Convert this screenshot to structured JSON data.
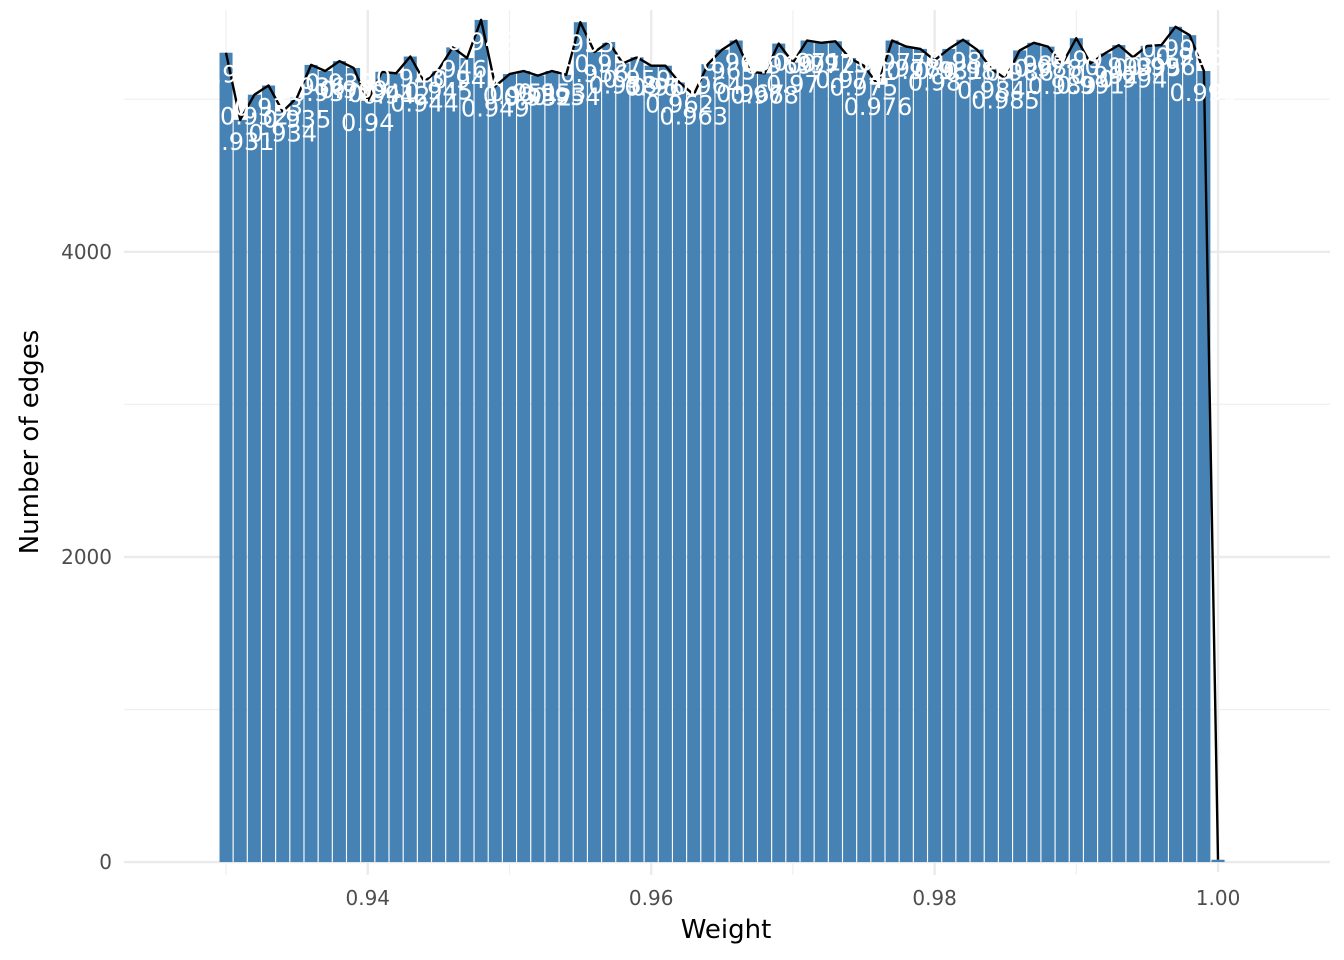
{
  "chart_data": {
    "type": "bar",
    "title": "",
    "xlabel": "Weight",
    "ylabel": "Number of edges",
    "xlim": [
      0.9228,
      1.0079
    ],
    "ylim": [
      -85,
      5585
    ],
    "x_ticks": [
      {
        "value": 0.94,
        "label": "0.94"
      },
      {
        "value": 0.96,
        "label": "0.96"
      },
      {
        "value": 0.98,
        "label": "0.98"
      },
      {
        "value": 1.0,
        "label": "1.00"
      }
    ],
    "y_ticks": [
      {
        "value": 0,
        "label": "0"
      },
      {
        "value": 2000,
        "label": "2000"
      },
      {
        "value": 4000,
        "label": "4000"
      }
    ],
    "grid": true,
    "legend": "none",
    "bar_color": "#4682b4",
    "line_color": "#000000",
    "bar_width": 0.00092,
    "x": [
      0.93,
      0.931,
      0.932,
      0.933,
      0.934,
      0.935,
      0.936,
      0.937,
      0.938,
      0.939,
      0.94,
      0.941,
      0.942,
      0.943,
      0.944,
      0.945,
      0.946,
      0.947,
      0.948,
      0.949,
      0.95,
      0.951,
      0.952,
      0.953,
      0.954,
      0.955,
      0.956,
      0.957,
      0.958,
      0.959,
      0.96,
      0.961,
      0.962,
      0.963,
      0.964,
      0.965,
      0.966,
      0.967,
      0.968,
      0.969,
      0.97,
      0.971,
      0.972,
      0.973,
      0.974,
      0.975,
      0.976,
      0.977,
      0.978,
      0.979,
      0.98,
      0.981,
      0.982,
      0.983,
      0.984,
      0.985,
      0.986,
      0.987,
      0.988,
      0.989,
      0.99,
      0.991,
      0.992,
      0.993,
      0.994,
      0.995,
      0.996,
      0.997,
      0.998,
      0.999,
      1.0
    ],
    "values": [
      5305,
      4865,
      5030,
      5090,
      4920,
      5010,
      5225,
      5185,
      5250,
      5205,
      4990,
      5180,
      5170,
      5280,
      5115,
      5195,
      5340,
      5270,
      5520,
      5085,
      5165,
      5185,
      5155,
      5185,
      5160,
      5505,
      5310,
      5375,
      5235,
      5275,
      5220,
      5220,
      5110,
      5030,
      5230,
      5325,
      5385,
      5180,
      5170,
      5365,
      5240,
      5385,
      5370,
      5380,
      5270,
      5220,
      5095,
      5385,
      5345,
      5330,
      5255,
      5330,
      5390,
      5325,
      5200,
      5135,
      5320,
      5370,
      5345,
      5230,
      5400,
      5235,
      5300,
      5355,
      5275,
      5350,
      5355,
      5475,
      5420,
      5185,
      15
    ],
    "labels": [
      "0.93",
      "0.931",
      "0.932",
      "0.933",
      "0.934",
      "0.935",
      "0.936",
      "0.937",
      "0.938",
      "0.939",
      "0.94",
      "0.941",
      "0.942",
      "0.943",
      "0.944",
      "0.945",
      "0.946",
      "0.947",
      "0.948",
      "0.949",
      "0.95",
      "0.951",
      "0.952",
      "0.953",
      "0.954",
      "0.955",
      "0.956",
      "0.957",
      "0.958",
      "0.959",
      "0.96",
      "0.961",
      "0.962",
      "0.963",
      "0.964",
      "0.965",
      "0.966",
      "0.967",
      "0.968",
      "0.969",
      "0.97",
      "0.971",
      "0.972",
      "0.973",
      "0.974",
      "0.975",
      "0.976",
      "0.977",
      "0.978",
      "0.979",
      "0.98",
      "0.981",
      "0.982",
      "0.983",
      "0.984",
      "0.985",
      "0.986",
      "0.987",
      "0.988",
      "0.989",
      "0.99",
      "0.991",
      "0.992",
      "0.993",
      "0.994",
      "0.995",
      "0.996",
      "0.997",
      "0.998",
      "0.999",
      "1"
    ]
  }
}
